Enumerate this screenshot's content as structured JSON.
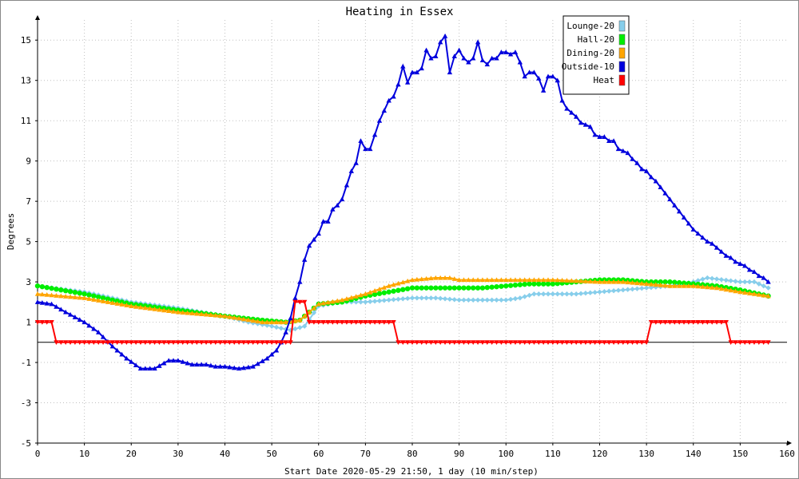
{
  "chart_data": {
    "type": "line",
    "title": "Heating in Essex",
    "xlabel": "Start Date 2020-05-29 21:50, 1 day (10 min/step)",
    "ylabel": "Degrees",
    "xlim": [
      0,
      160
    ],
    "ylim": [
      -5,
      16
    ],
    "x_ticks": [
      "0",
      "10",
      "20",
      "30",
      "40",
      "50",
      "60",
      "70",
      "80",
      "90",
      "100",
      "110",
      "120",
      "130",
      "140",
      "150",
      "160"
    ],
    "y_ticks": [
      "-5",
      "-3",
      "-1",
      "1",
      "3",
      "5",
      "7",
      "9",
      "11",
      "13",
      "15"
    ],
    "grid": true,
    "legend_position": "top-right",
    "series": [
      {
        "name": "Lounge-20",
        "color": "#87ceeb",
        "marker": "diamond",
        "points": [
          [
            0,
            2.8
          ],
          [
            10,
            2.5
          ],
          [
            20,
            2.0
          ],
          [
            30,
            1.7
          ],
          [
            40,
            1.3
          ],
          [
            45,
            1.0
          ],
          [
            50,
            0.8
          ],
          [
            54,
            0.6
          ],
          [
            57,
            0.8
          ],
          [
            60,
            1.8
          ],
          [
            65,
            2.0
          ],
          [
            70,
            2.0
          ],
          [
            75,
            2.1
          ],
          [
            80,
            2.2
          ],
          [
            85,
            2.2
          ],
          [
            90,
            2.1
          ],
          [
            95,
            2.1
          ],
          [
            100,
            2.1
          ],
          [
            103,
            2.2
          ],
          [
            106,
            2.4
          ],
          [
            110,
            2.4
          ],
          [
            115,
            2.4
          ],
          [
            120,
            2.5
          ],
          [
            125,
            2.6
          ],
          [
            130,
            2.7
          ],
          [
            135,
            2.8
          ],
          [
            140,
            3.0
          ],
          [
            143,
            3.2
          ],
          [
            150,
            3.0
          ],
          [
            153,
            3.0
          ],
          [
            156,
            2.7
          ]
        ]
      },
      {
        "name": "Hall-20",
        "color": "#00ee00",
        "marker": "circle",
        "points": [
          [
            0,
            2.8
          ],
          [
            10,
            2.4
          ],
          [
            20,
            1.9
          ],
          [
            30,
            1.6
          ],
          [
            40,
            1.3
          ],
          [
            48,
            1.1
          ],
          [
            53,
            1.0
          ],
          [
            56,
            1.1
          ],
          [
            58,
            1.5
          ],
          [
            60,
            1.9
          ],
          [
            65,
            2.0
          ],
          [
            70,
            2.3
          ],
          [
            75,
            2.5
          ],
          [
            80,
            2.7
          ],
          [
            85,
            2.7
          ],
          [
            90,
            2.7
          ],
          [
            95,
            2.7
          ],
          [
            100,
            2.8
          ],
          [
            105,
            2.9
          ],
          [
            110,
            2.9
          ],
          [
            115,
            3.0
          ],
          [
            120,
            3.1
          ],
          [
            125,
            3.1
          ],
          [
            130,
            3.0
          ],
          [
            135,
            3.0
          ],
          [
            140,
            2.9
          ],
          [
            145,
            2.8
          ],
          [
            150,
            2.6
          ],
          [
            156,
            2.3
          ]
        ]
      },
      {
        "name": "Dining-20",
        "color": "#ffa500",
        "marker": "triangle",
        "points": [
          [
            0,
            2.4
          ],
          [
            10,
            2.2
          ],
          [
            20,
            1.8
          ],
          [
            30,
            1.5
          ],
          [
            40,
            1.3
          ],
          [
            48,
            1.0
          ],
          [
            53,
            1.0
          ],
          [
            56,
            1.1
          ],
          [
            60,
            1.9
          ],
          [
            65,
            2.1
          ],
          [
            70,
            2.4
          ],
          [
            75,
            2.8
          ],
          [
            80,
            3.1
          ],
          [
            85,
            3.2
          ],
          [
            88,
            3.2
          ],
          [
            90,
            3.1
          ],
          [
            100,
            3.1
          ],
          [
            110,
            3.1
          ],
          [
            120,
            3.0
          ],
          [
            125,
            3.0
          ],
          [
            130,
            2.9
          ],
          [
            135,
            2.8
          ],
          [
            140,
            2.8
          ],
          [
            145,
            2.7
          ],
          [
            150,
            2.5
          ],
          [
            156,
            2.3
          ]
        ]
      },
      {
        "name": "Outside-10",
        "color": "#0000dd",
        "marker": "triangle",
        "points": [
          [
            0,
            2.0
          ],
          [
            3,
            1.9
          ],
          [
            6,
            1.5
          ],
          [
            10,
            1.0
          ],
          [
            13,
            0.5
          ],
          [
            16,
            -0.2
          ],
          [
            19,
            -0.8
          ],
          [
            22,
            -1.3
          ],
          [
            25,
            -1.3
          ],
          [
            28,
            -0.9
          ],
          [
            30,
            -0.9
          ],
          [
            33,
            -1.1
          ],
          [
            36,
            -1.1
          ],
          [
            38,
            -1.2
          ],
          [
            40,
            -1.2
          ],
          [
            43,
            -1.3
          ],
          [
            46,
            -1.2
          ],
          [
            49,
            -0.8
          ],
          [
            51,
            -0.4
          ],
          [
            52,
            0.0
          ],
          [
            53,
            0.5
          ],
          [
            54,
            1.2
          ],
          [
            55,
            2.2
          ],
          [
            56,
            3.0
          ],
          [
            57,
            4.1
          ],
          [
            58,
            4.8
          ],
          [
            59,
            5.1
          ],
          [
            60,
            5.4
          ],
          [
            61,
            6.0
          ],
          [
            62,
            6.0
          ],
          [
            63,
            6.6
          ],
          [
            64,
            6.8
          ],
          [
            65,
            7.1
          ],
          [
            66,
            7.8
          ],
          [
            67,
            8.5
          ],
          [
            68,
            8.9
          ],
          [
            69,
            10.0
          ],
          [
            70,
            9.6
          ],
          [
            71,
            9.6
          ],
          [
            72,
            10.3
          ],
          [
            73,
            11.0
          ],
          [
            74,
            11.5
          ],
          [
            75,
            12.0
          ],
          [
            76,
            12.2
          ],
          [
            77,
            12.8
          ],
          [
            78,
            13.7
          ],
          [
            79,
            12.9
          ],
          [
            80,
            13.4
          ],
          [
            81,
            13.4
          ],
          [
            82,
            13.6
          ],
          [
            83,
            14.5
          ],
          [
            84,
            14.1
          ],
          [
            85,
            14.2
          ],
          [
            86,
            14.9
          ],
          [
            87,
            15.2
          ],
          [
            88,
            13.4
          ],
          [
            89,
            14.2
          ],
          [
            90,
            14.5
          ],
          [
            91,
            14.1
          ],
          [
            92,
            13.9
          ],
          [
            93,
            14.1
          ],
          [
            94,
            14.9
          ],
          [
            95,
            14.0
          ],
          [
            96,
            13.8
          ],
          [
            97,
            14.1
          ],
          [
            98,
            14.1
          ],
          [
            99,
            14.4
          ],
          [
            100,
            14.4
          ],
          [
            101,
            14.3
          ],
          [
            102,
            14.4
          ],
          [
            103,
            13.9
          ],
          [
            104,
            13.2
          ],
          [
            105,
            13.4
          ],
          [
            106,
            13.4
          ],
          [
            107,
            13.1
          ],
          [
            108,
            12.5
          ],
          [
            109,
            13.2
          ],
          [
            110,
            13.2
          ],
          [
            111,
            13.0
          ],
          [
            112,
            12.0
          ],
          [
            113,
            11.6
          ],
          [
            114,
            11.4
          ],
          [
            115,
            11.2
          ],
          [
            116,
            10.9
          ],
          [
            117,
            10.8
          ],
          [
            118,
            10.7
          ],
          [
            119,
            10.3
          ],
          [
            120,
            10.2
          ],
          [
            121,
            10.2
          ],
          [
            122,
            10.0
          ],
          [
            123,
            10.0
          ],
          [
            124,
            9.6
          ],
          [
            125,
            9.5
          ],
          [
            126,
            9.4
          ],
          [
            127,
            9.1
          ],
          [
            128,
            8.9
          ],
          [
            129,
            8.6
          ],
          [
            130,
            8.5
          ],
          [
            131,
            8.2
          ],
          [
            132,
            8.0
          ],
          [
            133,
            7.7
          ],
          [
            134,
            7.4
          ],
          [
            135,
            7.1
          ],
          [
            136,
            6.8
          ],
          [
            137,
            6.5
          ],
          [
            138,
            6.2
          ],
          [
            139,
            5.9
          ],
          [
            140,
            5.6
          ],
          [
            141,
            5.4
          ],
          [
            142,
            5.2
          ],
          [
            143,
            5.0
          ],
          [
            144,
            4.9
          ],
          [
            145,
            4.7
          ],
          [
            146,
            4.5
          ],
          [
            147,
            4.3
          ],
          [
            148,
            4.2
          ],
          [
            149,
            4.0
          ],
          [
            150,
            3.9
          ],
          [
            151,
            3.8
          ],
          [
            152,
            3.6
          ],
          [
            153,
            3.5
          ],
          [
            154,
            3.3
          ],
          [
            155,
            3.2
          ],
          [
            156,
            3.0
          ]
        ]
      },
      {
        "name": "Heat",
        "color": "#ff0000",
        "marker": "triangle-down",
        "points": [
          [
            0,
            1
          ],
          [
            3,
            1
          ],
          [
            4,
            0
          ],
          [
            53,
            0
          ],
          [
            54,
            0
          ],
          [
            55,
            2
          ],
          [
            57,
            2
          ],
          [
            58,
            1
          ],
          [
            76,
            1
          ],
          [
            77,
            0
          ],
          [
            130,
            0
          ],
          [
            131,
            1
          ],
          [
            147,
            1
          ],
          [
            148,
            0
          ],
          [
            156,
            0
          ]
        ]
      }
    ]
  }
}
